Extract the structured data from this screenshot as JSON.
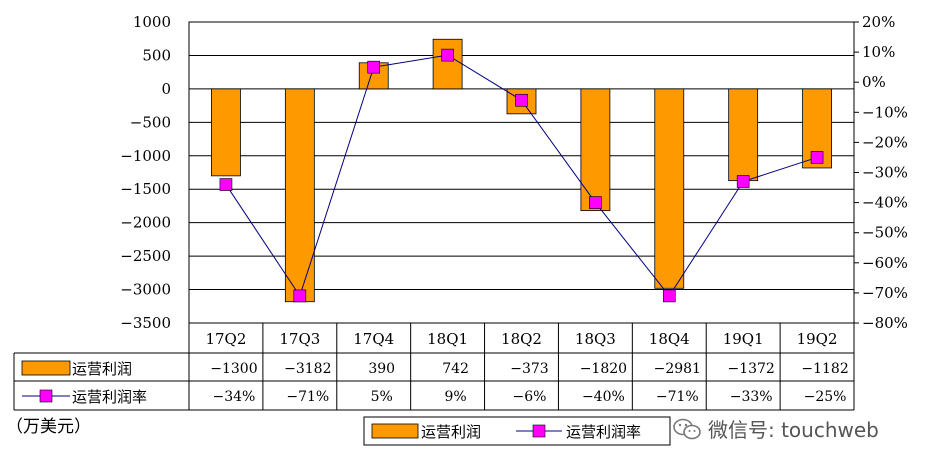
{
  "chart_data": {
    "type": "bar",
    "categories": [
      "17Q2",
      "17Q3",
      "17Q4",
      "18Q1",
      "18Q2",
      "18Q3",
      "18Q4",
      "19Q1",
      "19Q2"
    ],
    "series": [
      {
        "name": "运营利润",
        "type": "bar",
        "axis": "left",
        "values": [
          -1300,
          -3182,
          390,
          742,
          -373,
          -1820,
          -2981,
          -1372,
          -1182
        ],
        "labels": [
          "−1300",
          "−3182",
          "390",
          "742",
          "−373",
          "−1820",
          "−2981",
          "−1372",
          "−1182"
        ],
        "color": "#FF9900"
      },
      {
        "name": "运营利润率",
        "type": "line",
        "axis": "right",
        "values": [
          -34,
          -71,
          5,
          9,
          -6,
          -40,
          -71,
          -33,
          -25
        ],
        "labels": [
          "−34%",
          "−71%",
          "5%",
          "9%",
          "−6%",
          "−40%",
          "−71%",
          "−33%",
          "−25%"
        ],
        "color": "#FF00FF"
      }
    ],
    "left_axis": {
      "min": -3500,
      "max": 1000,
      "step": 500,
      "tick_labels": [
        "1000",
        "500",
        "0",
        "−500",
        "−1000",
        "−1500",
        "−2000",
        "−2500",
        "−3000",
        "−3500"
      ]
    },
    "right_axis": {
      "min": -80,
      "max": 20,
      "step": 10,
      "tick_labels": [
        "20%",
        "10%",
        "0%",
        "−10%",
        "−20%",
        "−30%",
        "−40%",
        "−50%",
        "−60%",
        "−70%",
        "−80%"
      ]
    },
    "grid": true,
    "legend": "bottom-right",
    "unit_label": "（万美元）"
  },
  "watermark": {
    "text": "微信号: touchweb",
    "icon": "wechat-icon"
  }
}
